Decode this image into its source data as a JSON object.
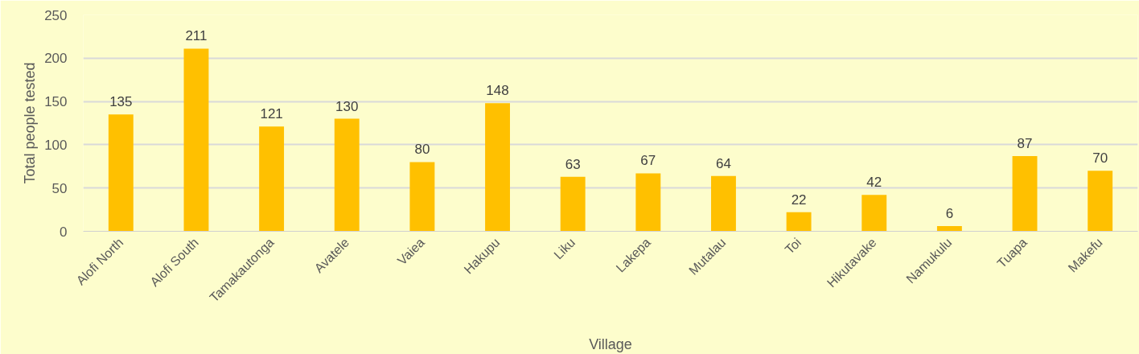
{
  "chart_data": {
    "type": "bar",
    "xlabel": "Village",
    "ylabel": "Total people tested",
    "categories": [
      "Alofi North",
      "Alofi South",
      "Tamakautonga",
      "Avatele",
      "Vaiea",
      "Hakupu",
      "Liku",
      "Lakepa",
      "Mutalau",
      "Toi",
      "Hikutavake",
      "Namukulu",
      "Tuapa",
      "Makefu"
    ],
    "values": [
      135,
      211,
      121,
      130,
      80,
      148,
      63,
      67,
      64,
      22,
      42,
      6,
      87,
      70
    ],
    "color": "#ffc000",
    "ylim": [
      0,
      250
    ],
    "yticks": [
      0,
      50,
      100,
      150,
      200,
      250
    ],
    "grid": "y",
    "data_labels": true
  }
}
